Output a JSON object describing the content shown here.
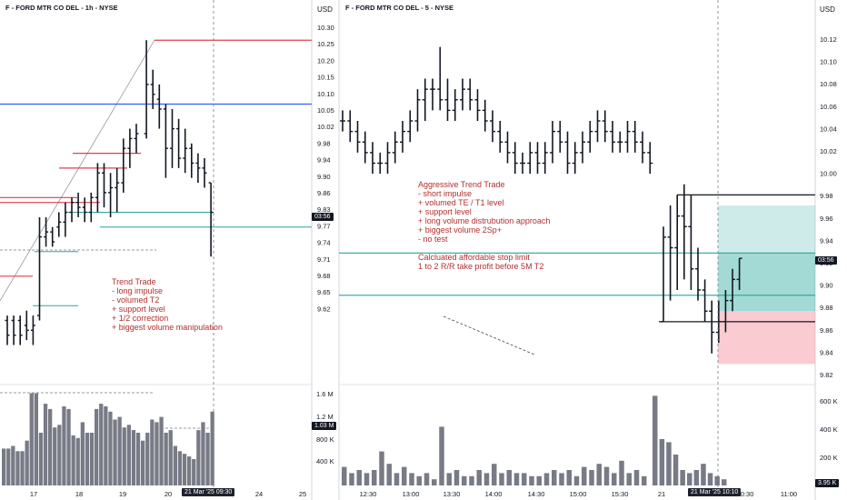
{
  "left_panel": {
    "title": "F - FORD MTR CO DEL - 1h - NYSE",
    "currency": "USD",
    "price_ticks": [
      "10.30",
      "10.25",
      "10.20",
      "10.15",
      "10.10",
      "10.05",
      "10.02",
      "9.98",
      "9.94",
      "9.90",
      "9.86",
      "9.83",
      "9.77",
      "9.74",
      "9.71",
      "9.68",
      "9.65",
      "9.62"
    ],
    "last_price_tag": "03:56",
    "volume_tag": "1.03 M",
    "date_ticks": [
      "17",
      "18",
      "19",
      "20",
      "24",
      "25"
    ],
    "crosshair_date": "21 Mar '25",
    "crosshair_time": "09:30",
    "annotation": "Trend Trade\n- long impulse\n- volumed T2\n+ support level\n+ 1/2 correction\n+ biggest volume manipulation"
  },
  "right_panel": {
    "title": "F - FORD MTR CO DEL - 5 - NYSE",
    "currency": "USD",
    "price_ticks": [
      "10.12",
      "10.10",
      "10.08",
      "10.06",
      "10.04",
      "10.02",
      "10.00",
      "9.98",
      "9.96",
      "9.94",
      "9.92",
      "9.90",
      "9.88",
      "9.86",
      "9.84",
      "9.82"
    ],
    "last_price_tag": "03:56",
    "volume_ticks": [
      "1.6 M",
      "1.2 M",
      "800 K",
      "400 K"
    ],
    "volume_ticks_right": [
      "600 K",
      "400 K",
      "200 K"
    ],
    "volume_tag": "3.95 K",
    "time_ticks": [
      "12:30",
      "13:00",
      "13:30",
      "14:00",
      "14:30",
      "15:00",
      "15:30",
      "21",
      "10:30",
      "11:00"
    ],
    "crosshair_date": "21 Mar '25",
    "crosshair_time": "10:10",
    "annotation": "Aggressive Trend Trade\n- short impulse\n+ volumed TE / T1 level\n+ support level\n+ long volume distrubution approach\n+ biggest volume 2Sp+\n- no test\n\nCalcluated affordable stop limit\n1 to 2 R/R take profit before 5M T2"
  },
  "colors": {
    "bar": "#131722",
    "red_level": "#e0404f",
    "blue_level": "#2962ff",
    "teal_level": "#26a69a",
    "volume": "#787b86",
    "profit_zone": "#26a69a",
    "stop_zone": "#f7a9b0",
    "annotation_text": "#b22e2e"
  },
  "chart_data": [
    {
      "type": "bar",
      "description_source": "left 1h OHLC",
      "title": "F - FORD MTR CO DEL - 1h - NYSE",
      "ylim": [
        9.6,
        10.31
      ],
      "bars": [
        [
          9.71,
          9.72,
          9.66,
          9.68
        ],
        [
          9.71,
          9.72,
          9.66,
          9.68
        ],
        [
          9.71,
          9.72,
          9.66,
          9.68
        ],
        [
          9.7,
          9.73,
          9.67,
          9.69
        ],
        [
          9.69,
          9.72,
          9.66,
          9.7
        ],
        [
          9.72,
          9.92,
          9.71,
          9.88
        ],
        [
          9.88,
          9.92,
          9.86,
          9.89
        ],
        [
          9.89,
          9.9,
          9.86,
          9.87
        ],
        [
          9.9,
          9.93,
          9.88,
          9.91
        ],
        [
          9.91,
          9.95,
          9.88,
          9.93
        ],
        [
          9.93,
          9.96,
          9.91,
          9.95
        ],
        [
          9.95,
          9.97,
          9.92,
          9.94
        ],
        [
          9.94,
          9.96,
          9.91,
          9.93
        ],
        [
          9.93,
          9.97,
          9.91,
          9.96
        ],
        [
          9.96,
          10.03,
          9.93,
          10.01
        ],
        [
          10.01,
          10.03,
          9.94,
          9.97
        ],
        [
          9.97,
          10.01,
          9.92,
          9.98
        ],
        [
          9.98,
          10.02,
          9.93,
          9.99
        ],
        [
          9.99,
          10.08,
          9.97,
          10.06
        ],
        [
          10.06,
          10.1,
          10.02,
          10.08
        ],
        [
          10.08,
          10.11,
          10.05,
          10.09
        ],
        [
          10.09,
          10.28,
          10.08,
          10.19
        ],
        [
          10.19,
          10.22,
          10.14,
          10.17
        ],
        [
          10.16,
          10.19,
          10.1,
          10.14
        ],
        [
          10.14,
          10.15,
          10.0,
          10.06
        ],
        [
          10.06,
          10.14,
          10.02,
          10.1
        ],
        [
          10.1,
          10.12,
          10.02,
          10.04
        ],
        [
          10.04,
          10.1,
          10.01,
          10.06
        ],
        [
          10.06,
          10.07,
          10.0,
          10.03
        ],
        [
          10.03,
          10.05,
          9.99,
          10.02
        ],
        [
          10.02,
          10.04,
          9.98,
          10.01
        ],
        [
          9.99,
          9.99,
          9.84,
          9.93
        ]
      ],
      "levels_red": [
        10.28,
        10.05,
        10.02,
        9.96,
        9.95,
        9.8
      ],
      "levels_blue": [
        10.15
      ],
      "levels_teal": [
        9.93,
        9.9,
        9.74,
        9.85
      ]
    },
    {
      "type": "bar",
      "description_source": "right 5m OHLC",
      "title": "F - FORD MTR CO DEL - 5 - NYSE",
      "ylim": [
        9.81,
        10.13
      ],
      "bars": [
        [
          10.05,
          10.06,
          10.04,
          10.05
        ],
        [
          10.05,
          10.06,
          10.03,
          10.04
        ],
        [
          10.04,
          10.05,
          10.02,
          10.03
        ],
        [
          10.03,
          10.04,
          10.01,
          10.02
        ],
        [
          10.02,
          10.03,
          10.0,
          10.01
        ],
        [
          10.01,
          10.02,
          10.0,
          10.01
        ],
        [
          10.01,
          10.03,
          10.0,
          10.02
        ],
        [
          10.02,
          10.04,
          10.01,
          10.03
        ],
        [
          10.03,
          10.05,
          10.02,
          10.04
        ],
        [
          10.04,
          10.06,
          10.03,
          10.05
        ],
        [
          10.05,
          10.08,
          10.04,
          10.07
        ],
        [
          10.07,
          10.09,
          10.05,
          10.08
        ],
        [
          10.08,
          10.09,
          10.06,
          10.08
        ],
        [
          10.08,
          10.12,
          10.06,
          10.07
        ],
        [
          10.07,
          10.09,
          10.05,
          10.06
        ],
        [
          10.06,
          10.08,
          10.05,
          10.07
        ],
        [
          10.07,
          10.09,
          10.06,
          10.08
        ],
        [
          10.08,
          10.09,
          10.06,
          10.07
        ],
        [
          10.07,
          10.08,
          10.05,
          10.06
        ],
        [
          10.06,
          10.07,
          10.04,
          10.05
        ],
        [
          10.05,
          10.06,
          10.03,
          10.04
        ],
        [
          10.04,
          10.05,
          10.02,
          10.03
        ],
        [
          10.03,
          10.04,
          10.01,
          10.02
        ],
        [
          10.02,
          10.03,
          10.0,
          10.01
        ],
        [
          10.01,
          10.02,
          10.0,
          10.01
        ],
        [
          10.01,
          10.03,
          10.0,
          10.02
        ],
        [
          10.02,
          10.03,
          10.0,
          10.01
        ],
        [
          10.01,
          10.03,
          10.0,
          10.02
        ],
        [
          10.02,
          10.05,
          10.01,
          10.04
        ],
        [
          10.04,
          10.05,
          10.02,
          10.03
        ],
        [
          10.03,
          10.04,
          10.0,
          10.01
        ],
        [
          10.01,
          10.03,
          10.0,
          10.02
        ],
        [
          10.02,
          10.04,
          10.01,
          10.03
        ],
        [
          10.03,
          10.05,
          10.02,
          10.04
        ],
        [
          10.04,
          10.06,
          10.03,
          10.05
        ],
        [
          10.05,
          10.06,
          10.03,
          10.04
        ],
        [
          10.04,
          10.05,
          10.02,
          10.03
        ],
        [
          10.03,
          10.04,
          10.02,
          10.03
        ],
        [
          10.03,
          10.05,
          10.02,
          10.04
        ],
        [
          10.04,
          10.05,
          10.02,
          10.03
        ],
        [
          10.03,
          10.04,
          10.01,
          10.02
        ],
        [
          10.02,
          10.03,
          10.0,
          10.01
        ],
        [
          9.86,
          9.95,
          9.86,
          9.94
        ],
        [
          9.94,
          9.97,
          9.88,
          9.93
        ],
        [
          9.93,
          9.98,
          9.89,
          9.96
        ],
        [
          9.96,
          9.99,
          9.9,
          9.95
        ],
        [
          9.95,
          9.98,
          9.89,
          9.91
        ],
        [
          9.91,
          9.93,
          9.88,
          9.89
        ],
        [
          9.89,
          9.9,
          9.86,
          9.87
        ],
        [
          9.87,
          9.88,
          9.83,
          9.85
        ],
        [
          9.85,
          9.88,
          9.84,
          9.86
        ],
        [
          9.86,
          9.89,
          9.85,
          9.88
        ],
        [
          9.88,
          9.91,
          9.87,
          9.9
        ],
        [
          9.9,
          9.92,
          9.89,
          9.92
        ]
      ],
      "levels_black": [
        9.98,
        9.86
      ],
      "levels_teal": [
        9.925,
        9.885
      ],
      "position": {
        "entry": 9.87,
        "take_profit": 9.97,
        "stop": 9.82
      }
    }
  ]
}
